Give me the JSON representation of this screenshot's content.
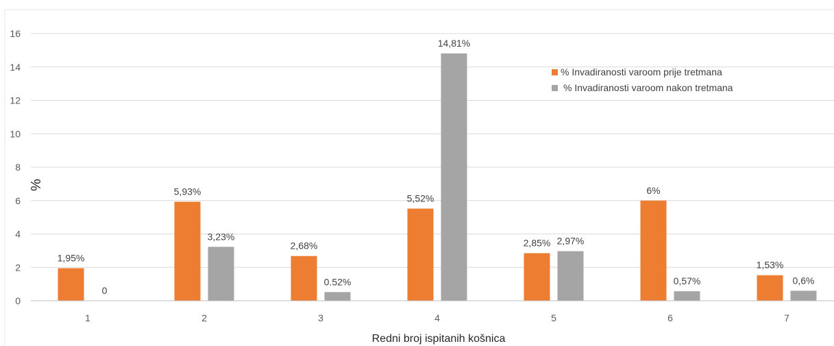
{
  "chart_data": {
    "type": "bar",
    "categories": [
      "1",
      "2",
      "3",
      "4",
      "5",
      "6",
      "7"
    ],
    "series": [
      {
        "name": "% Invadiranosti varoom prije tretmana",
        "color": "#ED7D31",
        "values": [
          1.95,
          5.93,
          2.68,
          5.52,
          2.85,
          6,
          1.53
        ],
        "labels": [
          "1,95%",
          "5,93%",
          "2,68%",
          "5,52%",
          "2,85%",
          "6%",
          "1,53%"
        ]
      },
      {
        "name": "% Invadiranosti varoom nakon tretmana",
        "color": "#A5A5A5",
        "values": [
          0,
          3.23,
          0.52,
          14.81,
          2.97,
          0.57,
          0.6
        ],
        "labels": [
          "0",
          "3,23%",
          "0.52%",
          "14,81%",
          "2,97%",
          "0,57%",
          "0,6%"
        ]
      }
    ],
    "xlabel": "Redni broj ispitanih košnica",
    "ylabel": "%",
    "ylim": [
      0,
      16
    ],
    "yticks": [
      0,
      2,
      4,
      6,
      8,
      10,
      12,
      14,
      16
    ],
    "grid": true,
    "legend_position": "top-right"
  },
  "colors": {
    "gridline": "#D9D9D9",
    "axis": "#BFBFBF"
  }
}
